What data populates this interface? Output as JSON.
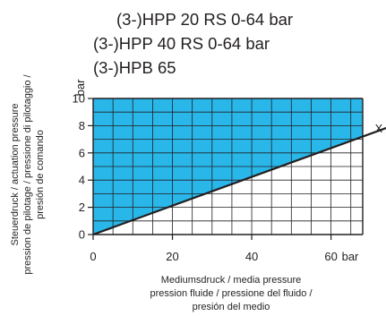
{
  "chart_data": {
    "type": "area",
    "title_lines": [
      "(3-)HPP 20 RS 0-64 bar",
      "(3-)HPP 40 RS 0-64 bar",
      "(3-)HPB 65"
    ],
    "xlabel_lines": [
      "Mediumsdruck / media pressure",
      "pression fluide / pressione del fluido /",
      "presión del medio"
    ],
    "ylabel_lines": [
      "Steuerdruck / actuation pressure",
      "pression de pilotage / pressione di pilotaggio /",
      "presión de comando"
    ],
    "x_unit": "bar",
    "y_unit": "bar",
    "x_tick_labels": [
      "0",
      "20",
      "40",
      "60"
    ],
    "y_tick_labels": [
      "0",
      "2",
      "4",
      "6",
      "8",
      "10"
    ],
    "xlim": [
      0,
      68
    ],
    "ylim": [
      0,
      10
    ],
    "grid": true,
    "series": [
      {
        "x": [
          0,
          68
        ],
        "y": [
          0,
          7.2
        ],
        "fill_above": true
      }
    ],
    "annotation": "X",
    "colors": {
      "fill": "#29b7ea",
      "line": "#231f20",
      "grid": "#231f20"
    }
  }
}
